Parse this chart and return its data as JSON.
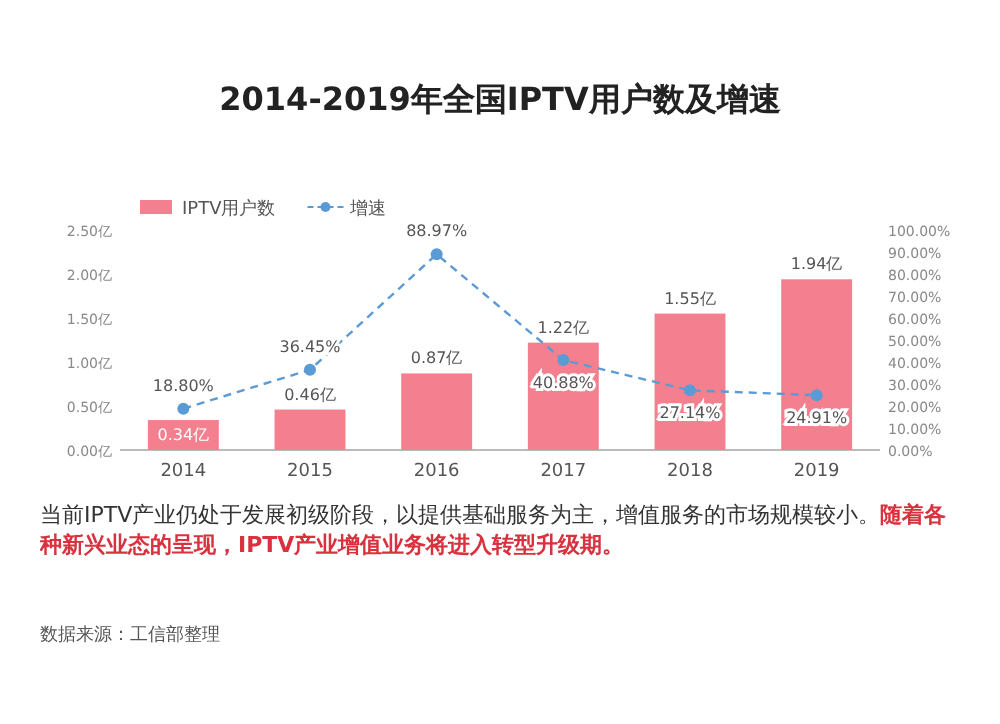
{
  "chart_data": {
    "type": "bar",
    "title": "2014-2019年全国IPTV用户数及增速",
    "categories": [
      "2014",
      "2015",
      "2016",
      "2017",
      "2018",
      "2019"
    ],
    "series": [
      {
        "name": "IPTV用户数",
        "color": "#f4808f",
        "values": [
          0.34,
          0.46,
          0.87,
          1.22,
          1.55,
          1.94
        ],
        "value_labels": [
          "0.34亿",
          "0.46亿",
          "0.87亿",
          "1.22亿",
          "1.55亿",
          "1.94亿"
        ]
      },
      {
        "name": "增速",
        "type": "line",
        "axis": "y2",
        "color": "#5b9bd5",
        "marker": "circle",
        "line_style": "dashed",
        "values": [
          18.8,
          36.45,
          88.97,
          40.88,
          27.14,
          24.91
        ],
        "value_labels": [
          "18.80%",
          "36.45%",
          "88.97%",
          "40.88%",
          "27.14%",
          "24.91%"
        ]
      }
    ],
    "ylim": [
      0,
      2.5
    ],
    "yticks": [
      {
        "value": 0,
        "label": "0.00亿"
      },
      {
        "value": 0.5,
        "label": "0.50亿"
      },
      {
        "value": 1,
        "label": "1.00亿"
      },
      {
        "value": 1.5,
        "label": "1.50亿"
      },
      {
        "value": 2,
        "label": "2.00亿"
      },
      {
        "value": 2.5,
        "label": "2.50亿"
      }
    ],
    "y2lim": [
      0,
      100
    ],
    "y2ticks": [
      {
        "value": 0,
        "label": "0.00%"
      },
      {
        "value": 10,
        "label": "10.00%"
      },
      {
        "value": 20,
        "label": "20.00%"
      },
      {
        "value": 30,
        "label": "30.00%"
      },
      {
        "value": 40,
        "label": "40.00%"
      },
      {
        "value": 50,
        "label": "50.00%"
      },
      {
        "value": 60,
        "label": "60.00%"
      },
      {
        "value": 70,
        "label": "70.00%"
      },
      {
        "value": 80,
        "label": "80.00%"
      },
      {
        "value": 90,
        "label": "90.00%"
      },
      {
        "value": 100,
        "label": "100.00%"
      }
    ],
    "legend": "top left",
    "grid": false,
    "annotations": [
      "当前IPTV产业仍处于发展初级阶段，以提供基础服务为主，增值服务的市场规模较小。",
      "随着各种新兴业态的呈现，IPTV产业增值业务将进入转型升级期。",
      "数据来源：工信部整理"
    ]
  }
}
